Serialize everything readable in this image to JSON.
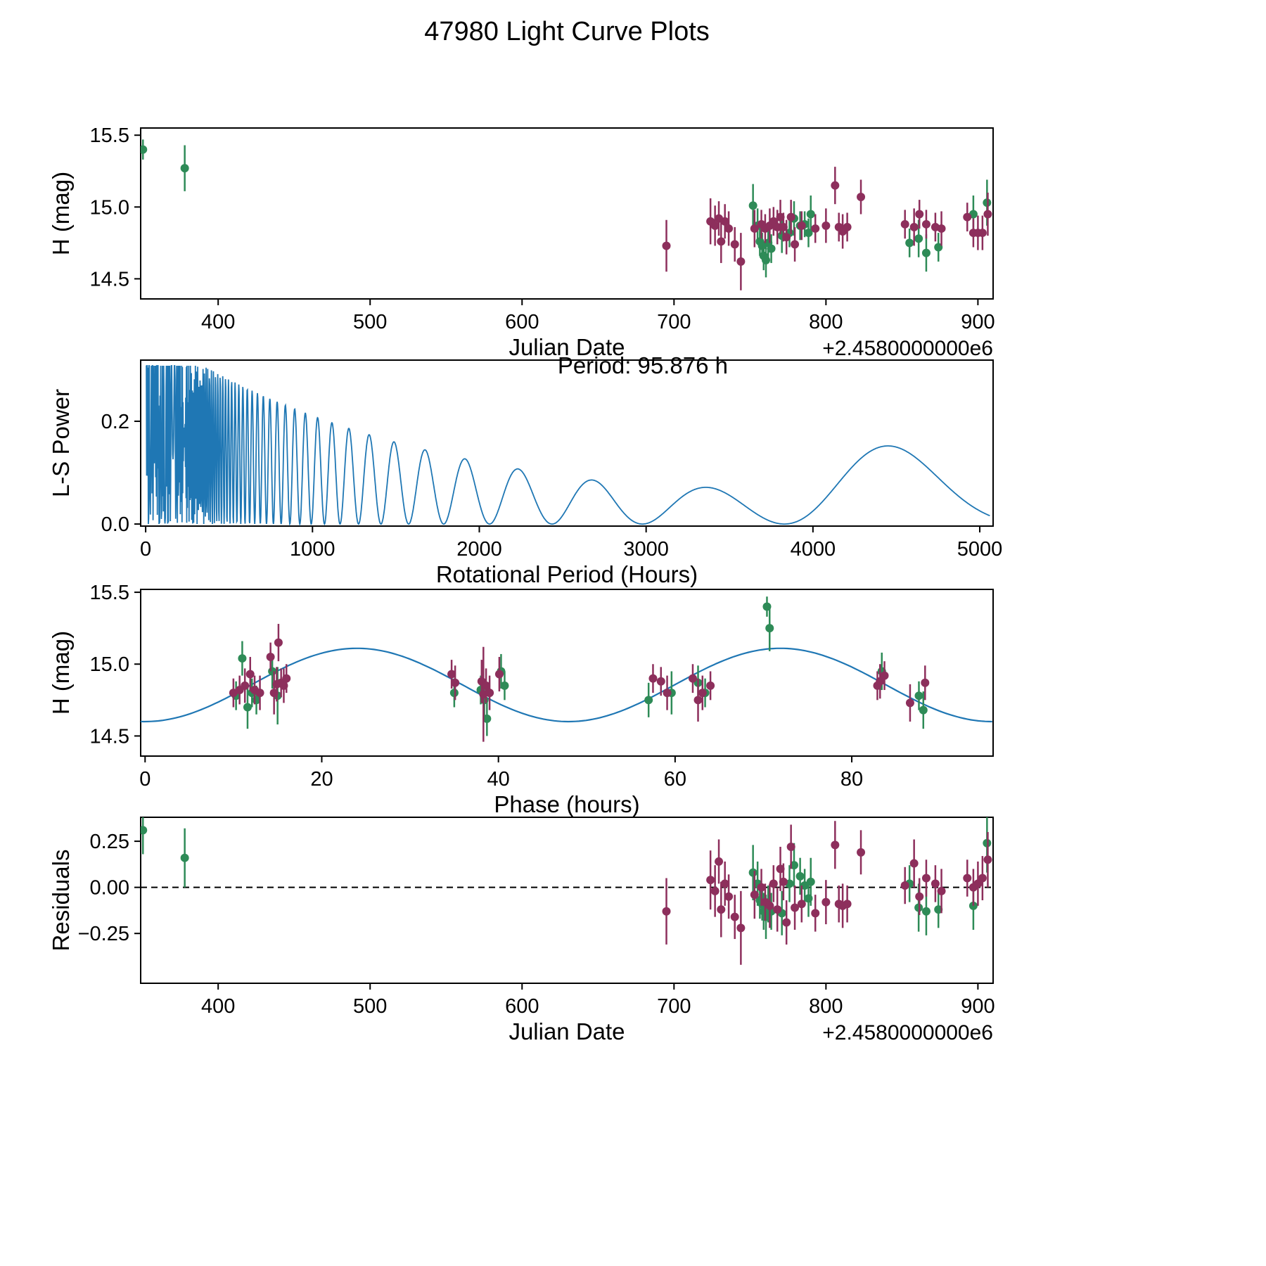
{
  "figure": {
    "title": "47980 Light Curve Plots"
  },
  "colors": {
    "green_series": "#2e8b57",
    "purple_series": "#8d2f5c",
    "fit_line": "#1f77b4",
    "axis": "#000000"
  },
  "chart_data": [
    {
      "id": "jd_lightcurve",
      "type": "scatter",
      "xlabel": "Julian Date",
      "ylabel": "H (mag)",
      "x_offset_label": "+2.4580000000e6",
      "xlim": [
        349,
        910
      ],
      "ylim": [
        14.36,
        15.55
      ],
      "xticks": [
        400,
        500,
        600,
        700,
        800,
        900
      ],
      "xtick_labels": [
        "400",
        "500",
        "600",
        "700",
        "800",
        "900"
      ],
      "yticks": [
        14.5,
        15.0,
        15.5
      ],
      "ytick_labels": [
        "14.5",
        "15.0",
        "15.5"
      ],
      "series": [
        {
          "name": "green-observations",
          "color": "#2e8b57",
          "points": [
            [
              350.5,
              15.4,
              0.07
            ],
            [
              378,
              15.27,
              0.16
            ],
            [
              752,
              15.01,
              0.15
            ],
            [
              755,
              14.87,
              0.12
            ],
            [
              756.5,
              14.76,
              0.1
            ],
            [
              758,
              14.73,
              0.09
            ],
            [
              759,
              14.66,
              0.1
            ],
            [
              760.5,
              14.63,
              0.12
            ],
            [
              762,
              14.75,
              0.1
            ],
            [
              764,
              14.71,
              0.1
            ],
            [
              771,
              14.8,
              0.12
            ],
            [
              776,
              14.82,
              0.1
            ],
            [
              779,
              14.92,
              0.12
            ],
            [
              783,
              14.87,
              0.1
            ],
            [
              786,
              14.88,
              0.09
            ],
            [
              788.5,
              14.82,
              0.1
            ],
            [
              790,
              14.95,
              0.13
            ],
            [
              855,
              14.75,
              0.1
            ],
            [
              861,
              14.78,
              0.13
            ],
            [
              866,
              14.68,
              0.13
            ],
            [
              874,
              14.72,
              0.1
            ],
            [
              897,
              14.95,
              0.13
            ],
            [
              906,
              15.03,
              0.16
            ]
          ]
        },
        {
          "name": "purple-observations",
          "color": "#8d2f5c",
          "points": [
            [
              695,
              14.73,
              0.18
            ],
            [
              724,
              14.9,
              0.16
            ],
            [
              727,
              14.87,
              0.14
            ],
            [
              729.5,
              14.92,
              0.12
            ],
            [
              731,
              14.76,
              0.15
            ],
            [
              733.5,
              14.9,
              0.12
            ],
            [
              736,
              14.85,
              0.12
            ],
            [
              740,
              14.74,
              0.12
            ],
            [
              744,
              14.62,
              0.2
            ],
            [
              753,
              14.85,
              0.13
            ],
            [
              757.5,
              14.88,
              0.1
            ],
            [
              760,
              14.85,
              0.1
            ],
            [
              763,
              14.87,
              0.12
            ],
            [
              765.5,
              14.9,
              0.1
            ],
            [
              768,
              14.86,
              0.12
            ],
            [
              770,
              14.93,
              0.12
            ],
            [
              772,
              14.86,
              0.1
            ],
            [
              774,
              14.79,
              0.12
            ],
            [
              777,
              14.93,
              0.12
            ],
            [
              779.5,
              14.74,
              0.12
            ],
            [
              784,
              14.87,
              0.1
            ],
            [
              793,
              14.85,
              0.1
            ],
            [
              800,
              14.87,
              0.12
            ],
            [
              806,
              15.15,
              0.13
            ],
            [
              808.5,
              14.86,
              0.1
            ],
            [
              811,
              14.83,
              0.12
            ],
            [
              814,
              14.86,
              0.1
            ],
            [
              823,
              15.07,
              0.12
            ],
            [
              852,
              14.88,
              0.1
            ],
            [
              858,
              14.86,
              0.13
            ],
            [
              861.5,
              14.95,
              0.1
            ],
            [
              866,
              14.88,
              0.1
            ],
            [
              872,
              14.86,
              0.1
            ],
            [
              876,
              14.85,
              0.12
            ],
            [
              893,
              14.93,
              0.1
            ],
            [
              897,
              14.82,
              0.1
            ],
            [
              900,
              14.82,
              0.12
            ],
            [
              903,
              14.82,
              0.12
            ],
            [
              906.5,
              14.95,
              0.15
            ]
          ]
        }
      ]
    },
    {
      "id": "periodogram",
      "type": "line",
      "xlabel": "Rotational Period (Hours)",
      "ylabel": "L-S Power",
      "annotation": "Period: 95.876 h",
      "annotation_x": 2980,
      "annotation_y": 0.293,
      "best_period_hours": 95.876,
      "line_color": "#1f77b4",
      "xlim": [
        -30,
        5080
      ],
      "ylim": [
        -0.004,
        0.319
      ],
      "xticks": [
        0,
        1000,
        2000,
        3000,
        4000,
        5000
      ],
      "xtick_labels": [
        "0",
        "1000",
        "2000",
        "3000",
        "4000",
        "5000"
      ],
      "yticks": [
        0.0,
        0.2
      ],
      "ytick_labels": [
        "0.0",
        "0.2"
      ],
      "main_peaks": [
        [
          95.9,
          0.3
        ],
        [
          780,
          0.2
        ],
        [
          1050,
          0.22
        ],
        [
          4400,
          0.145
        ]
      ],
      "synth": {
        "comb": 13400,
        "noise_amp": 0.36,
        "noise_decay": 1600,
        "base": 0.018,
        "bump_center": 4430,
        "bump_width": 680,
        "bump_amp": 0.112,
        "x_start": 2,
        "x_end": 5060,
        "x_step": 2,
        "y_cap": 0.308
      }
    },
    {
      "id": "phase_curve",
      "type": "scatter",
      "xlabel": "Phase (hours)",
      "ylabel": "H (mag)",
      "fit": {
        "mean": 14.855,
        "amplitude": 0.255,
        "period": 47.938
      },
      "fit_color": "#1f77b4",
      "xlim": [
        -0.5,
        96
      ],
      "ylim": [
        14.36,
        15.52
      ],
      "xticks": [
        0,
        20,
        40,
        60,
        80
      ],
      "xtick_labels": [
        "0",
        "20",
        "40",
        "60",
        "80"
      ],
      "yticks": [
        14.5,
        15.0,
        15.5
      ],
      "ytick_labels": [
        "14.5",
        "15.0",
        "15.5"
      ],
      "series": [
        {
          "name": "green-phased",
          "color": "#2e8b57",
          "points": [
            [
              10.3,
              14.78,
              0.1
            ],
            [
              11.0,
              15.04,
              0.12
            ],
            [
              11.6,
              14.7,
              0.15
            ],
            [
              12.1,
              14.8,
              0.1
            ],
            [
              12.6,
              14.75,
              0.1
            ],
            [
              14.4,
              14.95,
              0.12
            ],
            [
              15.0,
              14.78,
              0.2
            ],
            [
              35.0,
              14.8,
              0.1
            ],
            [
              38.0,
              14.82,
              0.1
            ],
            [
              38.4,
              14.75,
              0.12
            ],
            [
              38.7,
              14.62,
              0.12
            ],
            [
              40.3,
              14.95,
              0.12
            ],
            [
              40.7,
              14.85,
              0.1
            ],
            [
              57.0,
              14.75,
              0.12
            ],
            [
              59.6,
              14.8,
              0.15
            ],
            [
              62.6,
              14.87,
              0.12
            ],
            [
              63.4,
              14.8,
              0.1
            ],
            [
              70.4,
              15.4,
              0.07
            ],
            [
              70.7,
              15.25,
              0.16
            ],
            [
              83.4,
              14.95,
              0.13
            ],
            [
              87.6,
              14.78,
              0.1
            ],
            [
              88.1,
              14.68,
              0.13
            ]
          ]
        },
        {
          "name": "purple-phased",
          "color": "#8d2f5c",
          "points": [
            [
              10.0,
              14.8,
              0.1
            ],
            [
              10.7,
              14.82,
              0.1
            ],
            [
              11.3,
              14.85,
              0.12
            ],
            [
              11.9,
              14.93,
              0.12
            ],
            [
              12.4,
              14.82,
              0.1
            ],
            [
              13.0,
              14.8,
              0.12
            ],
            [
              14.2,
              15.05,
              0.1
            ],
            [
              14.6,
              14.8,
              0.15
            ],
            [
              14.9,
              14.86,
              0.12
            ],
            [
              15.1,
              15.15,
              0.13
            ],
            [
              15.4,
              14.87,
              0.1
            ],
            [
              15.7,
              14.85,
              0.12
            ],
            [
              16.0,
              14.9,
              0.1
            ],
            [
              34.7,
              14.93,
              0.1
            ],
            [
              35.1,
              14.87,
              0.12
            ],
            [
              38.1,
              14.88,
              0.15
            ],
            [
              38.3,
              14.79,
              0.33
            ],
            [
              38.6,
              14.85,
              0.12
            ],
            [
              39.0,
              14.8,
              0.12
            ],
            [
              40.1,
              14.93,
              0.12
            ],
            [
              57.5,
              14.9,
              0.1
            ],
            [
              58.4,
              14.88,
              0.1
            ],
            [
              59.1,
              14.8,
              0.12
            ],
            [
              62.0,
              14.9,
              0.1
            ],
            [
              62.6,
              14.75,
              0.15
            ],
            [
              63.1,
              14.8,
              0.12
            ],
            [
              64.0,
              14.85,
              0.1
            ],
            [
              82.9,
              14.85,
              0.1
            ],
            [
              83.2,
              14.88,
              0.12
            ],
            [
              83.7,
              14.92,
              0.1
            ],
            [
              86.6,
              14.73,
              0.13
            ],
            [
              88.3,
              14.87,
              0.12
            ]
          ]
        }
      ]
    },
    {
      "id": "residuals",
      "type": "scatter",
      "xlabel": "Julian Date",
      "ylabel": "Residuals",
      "x_offset_label": "+2.4580000000e6",
      "hline": 0,
      "xlim": [
        349,
        910
      ],
      "ylim": [
        -0.52,
        0.38
      ],
      "xticks": [
        400,
        500,
        600,
        700,
        800,
        900
      ],
      "xtick_labels": [
        "400",
        "500",
        "600",
        "700",
        "800",
        "900"
      ],
      "yticks": [
        -0.25,
        0.0,
        0.25
      ],
      "ytick_labels": [
        "−0.25",
        "0.00",
        "0.25"
      ],
      "series": [
        {
          "name": "green-residuals",
          "color": "#2e8b57",
          "points": [
            [
              350.5,
              0.31,
              0.13
            ],
            [
              378,
              0.16,
              0.16
            ],
            [
              752,
              0.08,
              0.15
            ],
            [
              755,
              0.02,
              0.12
            ],
            [
              756.5,
              -0.07,
              0.1
            ],
            [
              758,
              -0.09,
              0.09
            ],
            [
              759,
              -0.13,
              0.1
            ],
            [
              760.5,
              -0.16,
              0.12
            ],
            [
              762,
              -0.09,
              0.1
            ],
            [
              764,
              -0.13,
              0.1
            ],
            [
              771,
              -0.14,
              0.12
            ],
            [
              776,
              0.02,
              0.1
            ],
            [
              779,
              0.12,
              0.12
            ],
            [
              783,
              0.06,
              0.1
            ],
            [
              786,
              0.01,
              0.09
            ],
            [
              788.5,
              -0.06,
              0.1
            ],
            [
              790,
              0.03,
              0.13
            ],
            [
              855,
              0.02,
              0.1
            ],
            [
              861,
              -0.11,
              0.13
            ],
            [
              866,
              -0.13,
              0.13
            ],
            [
              874,
              -0.12,
              0.1
            ],
            [
              897,
              -0.1,
              0.13
            ],
            [
              906,
              0.24,
              0.16
            ]
          ]
        },
        {
          "name": "purple-residuals",
          "color": "#8d2f5c",
          "points": [
            [
              695,
              -0.13,
              0.18
            ],
            [
              724,
              0.04,
              0.16
            ],
            [
              727,
              -0.02,
              0.14
            ],
            [
              729.5,
              0.14,
              0.12
            ],
            [
              731,
              -0.12,
              0.15
            ],
            [
              733.5,
              0.02,
              0.12
            ],
            [
              736,
              -0.05,
              0.12
            ],
            [
              740,
              -0.16,
              0.12
            ],
            [
              744,
              -0.22,
              0.2
            ],
            [
              753,
              -0.04,
              0.13
            ],
            [
              757.5,
              0.0,
              0.1
            ],
            [
              760,
              -0.08,
              0.1
            ],
            [
              763,
              -0.1,
              0.12
            ],
            [
              765.5,
              0.02,
              0.1
            ],
            [
              768,
              -0.12,
              0.12
            ],
            [
              770,
              0.1,
              0.12
            ],
            [
              772,
              0.03,
              0.1
            ],
            [
              774,
              -0.19,
              0.12
            ],
            [
              777,
              0.22,
              0.12
            ],
            [
              779.5,
              -0.11,
              0.12
            ],
            [
              784,
              -0.09,
              0.1
            ],
            [
              793,
              -0.14,
              0.1
            ],
            [
              800,
              -0.08,
              0.12
            ],
            [
              806,
              0.23,
              0.13
            ],
            [
              808.5,
              -0.09,
              0.1
            ],
            [
              811,
              -0.1,
              0.12
            ],
            [
              814,
              -0.09,
              0.1
            ],
            [
              823,
              0.19,
              0.12
            ],
            [
              852,
              0.01,
              0.1
            ],
            [
              858,
              0.13,
              0.13
            ],
            [
              861.5,
              -0.05,
              0.1
            ],
            [
              866,
              0.05,
              0.1
            ],
            [
              872,
              0.02,
              0.1
            ],
            [
              876,
              -0.02,
              0.12
            ],
            [
              893,
              0.05,
              0.1
            ],
            [
              897,
              0.0,
              0.1
            ],
            [
              900,
              0.02,
              0.12
            ],
            [
              903,
              0.05,
              0.12
            ],
            [
              906.5,
              0.15,
              0.15
            ]
          ]
        }
      ]
    }
  ]
}
